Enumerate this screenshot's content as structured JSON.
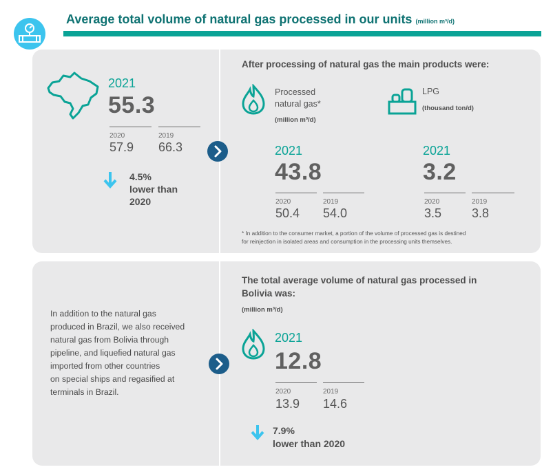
{
  "header": {
    "title": "Average total volume of natural gas processed in our units",
    "unit": "(million m³/d)"
  },
  "total": {
    "year_label": "2021",
    "value": "55.3",
    "prev": [
      {
        "year": "2020",
        "value": "57.9"
      },
      {
        "year": "2019",
        "value": "66.3"
      }
    ],
    "change": {
      "percent": "4.5%",
      "line1": "lower than",
      "line2": "2020"
    }
  },
  "products": {
    "heading": "After processing of natural gas the main products were:",
    "processed": {
      "label_line1": "Processed",
      "label_line2": "natural gas*",
      "unit": "(million m³/d)",
      "year_label": "2021",
      "value": "43.8",
      "prev": [
        {
          "year": "2020",
          "value": "50.4"
        },
        {
          "year": "2019",
          "value": "54.0"
        }
      ]
    },
    "lpg": {
      "label": "LPG",
      "unit": "(thousand ton/d)",
      "year_label": "2021",
      "value": "3.2",
      "prev": [
        {
          "year": "2020",
          "value": "3.5"
        },
        {
          "year": "2019",
          "value": "3.8"
        }
      ]
    },
    "footnote_line1": "* In addition to the consumer market, a portion of the volume of processed gas is destined",
    "footnote_line2": "for reinjection in isolated areas and consumption in the processing units themselves."
  },
  "bolivia": {
    "paragraph_lines": [
      "In addition to the natural gas",
      "produced in Brazil, we also received",
      "natural gas from Bolivia through",
      "pipeline, and liquefied natural gas",
      "imported from other countries",
      "on special ships and regasified at",
      "terminals in Brazil."
    ],
    "heading_line1": "The total average volume of natural gas processed in",
    "heading_line2": "Bolivia was:",
    "unit": "(million m³/d)",
    "year_label": "2021",
    "value": "12.8",
    "prev": [
      {
        "year": "2020",
        "value": "13.9"
      },
      {
        "year": "2019",
        "value": "14.6"
      }
    ],
    "change": {
      "percent": "7.9%",
      "text": "lower than 2020"
    }
  },
  "colors": {
    "teal": "#0aa396",
    "title": "#0e7272",
    "navy": "#1c5d8a",
    "light_blue": "#3cc4ee",
    "panel": "#e9e9ea"
  }
}
